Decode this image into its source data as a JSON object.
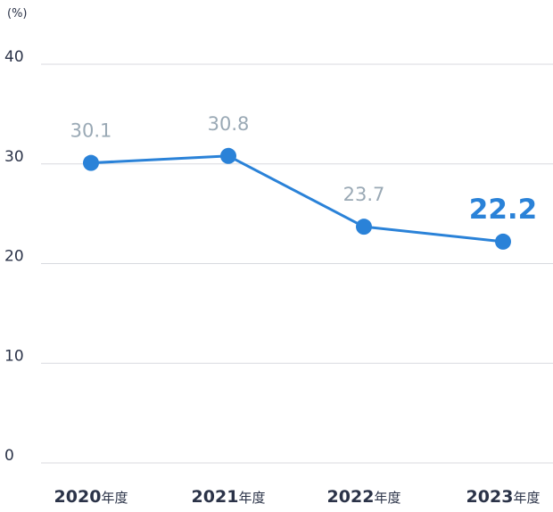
{
  "chart_data": {
    "type": "line",
    "unit_label": "(%)",
    "categories": [
      "2020年度",
      "2021年度",
      "2022年度",
      "2023年度"
    ],
    "category_parts": [
      {
        "year": "2020",
        "suffix": "年度"
      },
      {
        "year": "2021",
        "suffix": "年度"
      },
      {
        "year": "2022",
        "suffix": "年度"
      },
      {
        "year": "2023",
        "suffix": "年度"
      }
    ],
    "series": [
      {
        "values": [
          30.1,
          30.8,
          23.7,
          22.2
        ],
        "labels": [
          "30.1",
          "30.8",
          "23.7",
          "22.2"
        ]
      }
    ],
    "highlight_index": 3,
    "ylim": [
      0,
      40
    ],
    "yticks": [
      "0",
      "10",
      "20",
      "30",
      "40"
    ],
    "grid": true,
    "colors": {
      "line": "#2a82d8",
      "label": "#9aa9b5",
      "highlight": "#2a82d8",
      "axis_text": "#2b3348",
      "grid": "#d8dadf"
    }
  }
}
